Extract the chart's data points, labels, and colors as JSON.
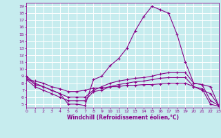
{
  "xlabel": "Windchill (Refroidissement éolien,°C)",
  "xlim": [
    0,
    23
  ],
  "ylim": [
    4.5,
    19.5
  ],
  "xticks": [
    0,
    1,
    2,
    3,
    4,
    5,
    6,
    7,
    8,
    9,
    10,
    11,
    12,
    13,
    14,
    15,
    16,
    17,
    18,
    19,
    20,
    21,
    22,
    23
  ],
  "yticks": [
    5,
    6,
    7,
    8,
    9,
    10,
    11,
    12,
    13,
    14,
    15,
    16,
    17,
    18,
    19
  ],
  "background_color": "#c6ecee",
  "line_color": "#880088",
  "grid_color": "#ffffff",
  "line1_x": [
    0,
    1,
    2,
    3,
    4,
    5,
    6,
    7,
    8,
    9,
    10,
    11,
    12,
    13,
    14,
    15,
    16,
    17,
    18,
    19,
    20,
    21,
    22,
    23
  ],
  "line1_y": [
    9.0,
    8.0,
    7.5,
    7.0,
    6.5,
    5.0,
    5.0,
    4.8,
    8.5,
    9.0,
    10.5,
    11.5,
    13.0,
    15.5,
    17.5,
    19.0,
    18.5,
    18.0,
    15.0,
    11.0,
    8.0,
    7.8,
    5.5,
    4.8
  ],
  "line2_x": [
    0,
    1,
    2,
    3,
    4,
    5,
    6,
    7,
    8,
    9,
    10,
    11,
    12,
    13,
    14,
    15,
    16,
    17,
    18,
    19,
    20,
    21,
    22,
    23
  ],
  "line2_y": [
    8.8,
    7.8,
    7.5,
    7.0,
    6.5,
    6.0,
    6.0,
    6.0,
    7.0,
    7.5,
    8.0,
    8.3,
    8.5,
    8.7,
    8.8,
    9.0,
    9.3,
    9.5,
    9.5,
    9.5,
    8.0,
    7.8,
    7.5,
    4.8
  ],
  "line3_x": [
    0,
    1,
    2,
    3,
    4,
    5,
    6,
    7,
    8,
    9,
    10,
    11,
    12,
    13,
    14,
    15,
    16,
    17,
    18,
    19,
    20,
    21,
    22,
    23
  ],
  "line3_y": [
    8.5,
    7.5,
    7.0,
    6.5,
    6.0,
    5.5,
    5.5,
    5.5,
    6.8,
    7.0,
    7.5,
    7.8,
    8.0,
    8.2,
    8.3,
    8.5,
    8.7,
    8.8,
    8.8,
    8.8,
    7.5,
    7.2,
    5.0,
    4.7
  ],
  "line4_x": [
    0,
    1,
    2,
    3,
    4,
    5,
    6,
    7,
    8,
    9,
    10,
    11,
    12,
    13,
    14,
    15,
    16,
    17,
    18,
    19,
    20,
    21,
    22,
    23
  ],
  "line4_y": [
    8.5,
    8.3,
    8.0,
    7.5,
    7.2,
    6.8,
    6.8,
    7.0,
    7.3,
    7.3,
    7.5,
    7.5,
    7.7,
    7.7,
    7.8,
    7.8,
    7.9,
    8.0,
    8.0,
    8.0,
    7.5,
    7.0,
    6.5,
    4.8
  ]
}
